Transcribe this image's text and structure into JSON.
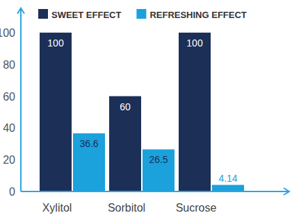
{
  "chart_data": {
    "type": "bar",
    "categories": [
      "Xylitol",
      "Sorbitol",
      "Sucrose"
    ],
    "series": [
      {
        "name": "SWEET EFFECT",
        "color": "#1c2f57",
        "values": [
          100,
          60,
          100
        ]
      },
      {
        "name": "REFRESHING EFFECT",
        "color": "#1ba1dc",
        "values": [
          36.6,
          26.5,
          4.14
        ]
      }
    ],
    "ylim": [
      0,
      115
    ],
    "yticks": [
      0,
      20,
      40,
      60,
      80,
      100
    ],
    "grid": false,
    "legend": "top",
    "data_labels": true
  }
}
